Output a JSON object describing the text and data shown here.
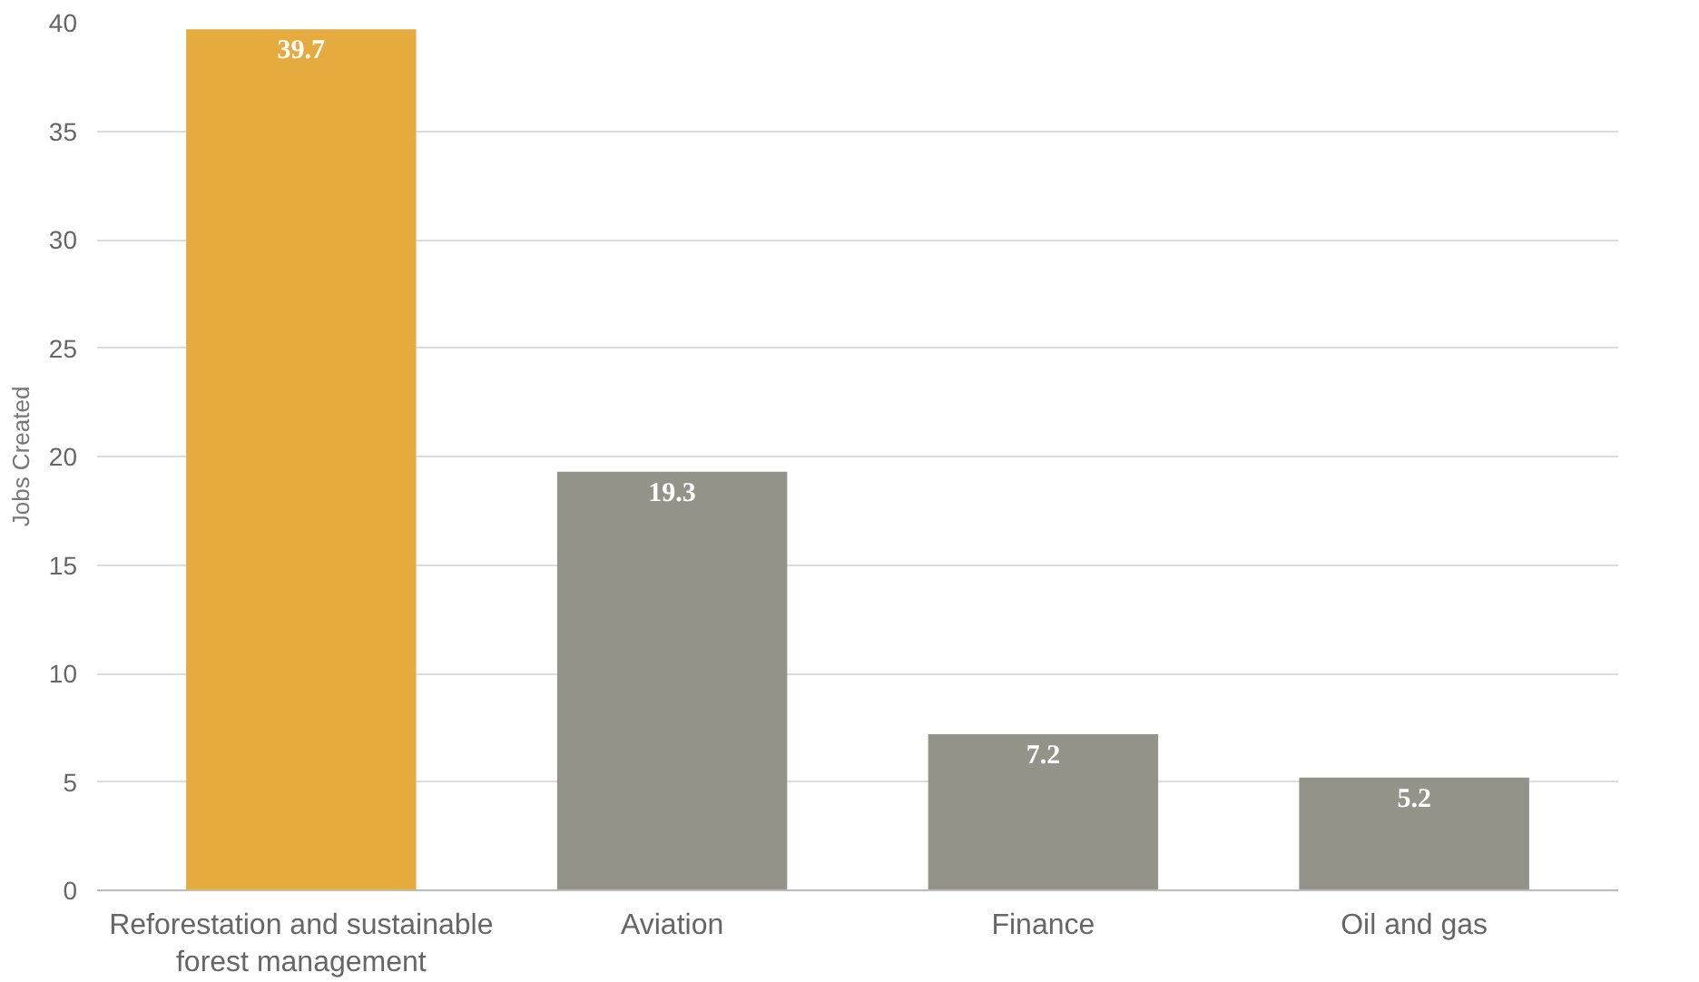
{
  "chart_data": {
    "type": "bar",
    "ylabel": "Jobs Created",
    "categories": [
      "Reforestation and sustainable forest management",
      "Aviation",
      "Finance",
      "Oil and gas"
    ],
    "values": [
      39.7,
      19.3,
      7.2,
      5.2
    ],
    "colors": [
      "#e5ab3f",
      "#93938a",
      "#93938a",
      "#93938a"
    ],
    "ylim": [
      0,
      40
    ],
    "yticks": [
      0,
      5,
      10,
      15,
      20,
      25,
      30,
      35,
      40
    ],
    "grid": "y",
    "data_labels": true
  }
}
